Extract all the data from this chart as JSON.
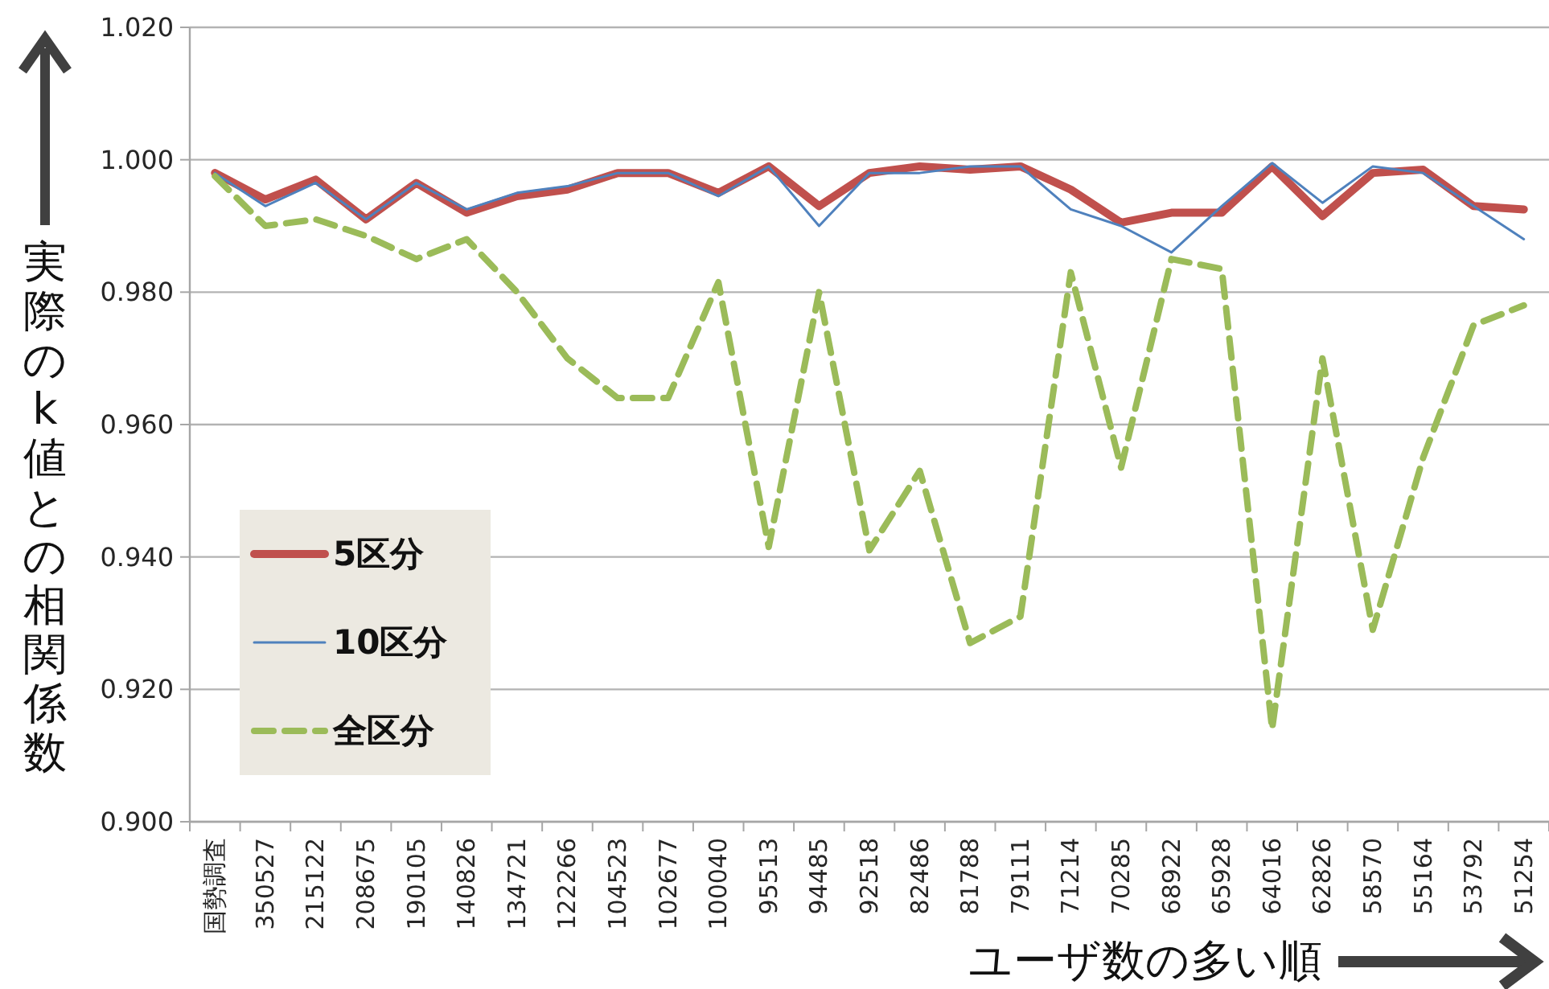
{
  "chart_data": {
    "type": "line",
    "ylabel": "実際のk値との相関係数",
    "xlabel": "ユーザ数の多い順",
    "categories": [
      "国勢調査",
      "350527",
      "215122",
      "208675",
      "190105",
      "140826",
      "134721",
      "122266",
      "104523",
      "102677",
      "100040",
      "95513",
      "94485",
      "92518",
      "82486",
      "81788",
      "79111",
      "71214",
      "70285",
      "68922",
      "65928",
      "64016",
      "62826",
      "58570",
      "55164",
      "53792",
      "51254"
    ],
    "series": [
      {
        "name": "5区分",
        "color": "#c0504d",
        "line_style": "solid",
        "values": [
          0.998,
          0.994,
          0.997,
          0.991,
          0.9965,
          0.992,
          0.9945,
          0.9955,
          0.998,
          0.998,
          0.995,
          0.999,
          0.993,
          0.998,
          0.999,
          0.9985,
          0.999,
          0.9955,
          0.9905,
          0.992,
          0.992,
          0.999,
          0.9915,
          0.998,
          0.9985,
          0.993,
          0.9925
        ]
      },
      {
        "name": "10区分",
        "color": "#4f81bd",
        "line_style": "solid",
        "values": [
          0.998,
          0.993,
          0.9965,
          0.991,
          0.9965,
          0.9925,
          0.995,
          0.996,
          0.998,
          0.998,
          0.9945,
          0.999,
          0.99,
          0.998,
          0.998,
          0.999,
          0.999,
          0.9925,
          0.99,
          0.986,
          0.993,
          0.9995,
          0.9935,
          0.999,
          0.998,
          0.993,
          0.988
        ]
      },
      {
        "name": "全区分",
        "color": "#9bbb59",
        "line_style": "dashed",
        "values": [
          0.9975,
          0.99,
          0.991,
          0.9885,
          0.985,
          0.988,
          0.98,
          0.97,
          0.964,
          0.964,
          0.9815,
          0.9415,
          0.98,
          0.941,
          0.953,
          0.927,
          0.931,
          0.983,
          0.9535,
          0.985,
          0.9835,
          0.914,
          0.97,
          0.929,
          0.955,
          0.975,
          0.978
        ]
      }
    ],
    "ylim": [
      0.9,
      1.02
    ],
    "yticks": [
      {
        "value": 0.9,
        "label": "0.900"
      },
      {
        "value": 0.92,
        "label": "0.920"
      },
      {
        "value": 0.94,
        "label": "0.940"
      },
      {
        "value": 0.96,
        "label": "0.960"
      },
      {
        "value": 0.98,
        "label": "0.980"
      },
      {
        "value": 1.0,
        "label": "1.000"
      },
      {
        "value": 1.02,
        "label": "1.020"
      }
    ],
    "grid": "y",
    "legend": "bottom left"
  }
}
